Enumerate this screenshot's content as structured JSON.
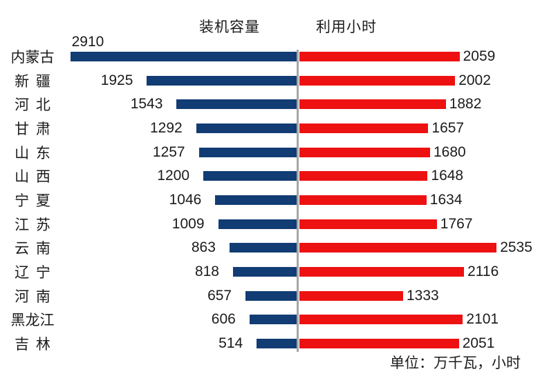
{
  "chart_data": {
    "type": "bar",
    "variant": "tornado-bidirectional-horizontal",
    "title_left": "装机容量",
    "title_right": "利用小时",
    "units_note": "单位：万千瓦，小时",
    "categories": [
      "内蒙古",
      "新 疆",
      "河 北",
      "甘 肃",
      "山 东",
      "山 西",
      "宁 夏",
      "江 苏",
      "云 南",
      "辽 宁",
      "河 南",
      "黑龙江",
      "吉 林"
    ],
    "series": [
      {
        "name": "装机容量",
        "side": "left",
        "color": "#123c74",
        "values": [
          2910,
          1925,
          1543,
          1292,
          1257,
          1200,
          1046,
          1009,
          863,
          818,
          657,
          606,
          514
        ]
      },
      {
        "name": "利用小时",
        "side": "right",
        "color": "#ee1111",
        "values": [
          2059,
          2002,
          1882,
          1657,
          1680,
          1648,
          1634,
          1767,
          2535,
          2116,
          1333,
          2101,
          2051
        ]
      }
    ],
    "axis": {
      "divider_color": "#a6a6a6",
      "grid": false,
      "value_labels": "outside-end"
    },
    "colors": {
      "text": "#1b1b1b",
      "background": "#ffffff"
    }
  }
}
